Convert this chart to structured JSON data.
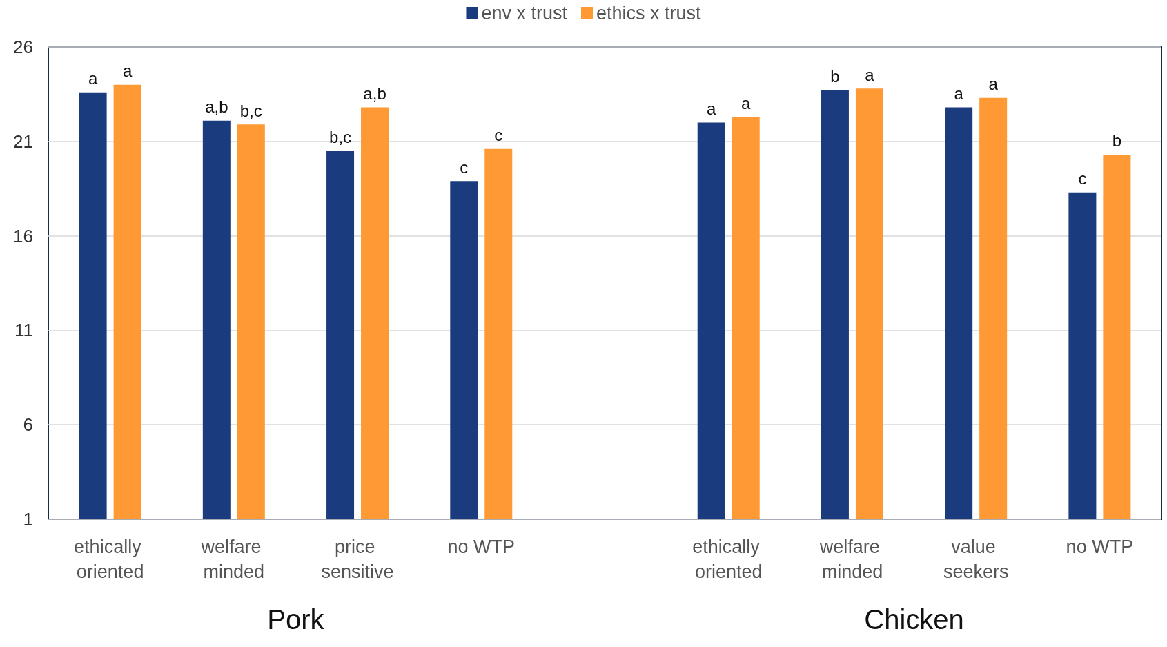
{
  "chart_data": {
    "type": "bar",
    "categories": [
      "ethically oriented",
      "welfare minded",
      "price sensitive",
      "no WTP",
      null,
      "ethically oriented",
      "welfare minded",
      "value seekers",
      "no WTP"
    ],
    "series": [
      {
        "name": "env x trust",
        "color": "#1a3c7e",
        "values": [
          23.6,
          22.1,
          20.5,
          18.9,
          null,
          22.0,
          23.7,
          22.8,
          18.3
        ],
        "value_labels": [
          "a",
          "a,b",
          "b,c",
          "c",
          null,
          "a",
          "b",
          "a",
          "c"
        ]
      },
      {
        "name": "ethics x trust",
        "color": "#ff9933",
        "values": [
          24.0,
          21.9,
          22.8,
          20.6,
          null,
          22.3,
          23.8,
          23.3,
          20.3
        ],
        "value_labels": [
          "a",
          "b,c",
          "a,b",
          "c",
          null,
          "a",
          "a",
          "a",
          "b"
        ]
      }
    ],
    "ylim": [
      1,
      26
    ],
    "yticks": [
      1,
      6,
      11,
      16,
      21,
      26
    ],
    "grid": "y",
    "legend": "top",
    "annotations": [
      "Pork",
      "Chicken"
    ]
  }
}
